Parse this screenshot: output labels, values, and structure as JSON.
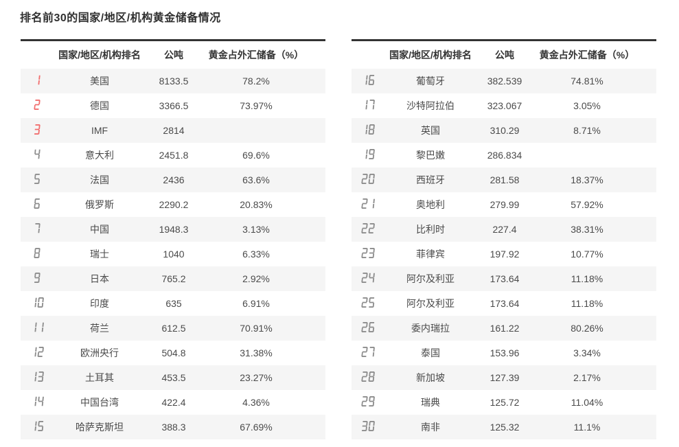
{
  "title": "排名前30的国家/地区/机构黄金储备情况",
  "colors": {
    "accent_red": "#f16d6d",
    "rank_gray": "#8c8c8c",
    "stripe_gray": "#f5f5f5",
    "header_border": "#333333",
    "body_text": "#4a4a4a"
  },
  "headers": {
    "rank": "",
    "name": "国家/地区/机构排名",
    "tonnes": "公吨",
    "pct": "黄金占外汇储备（%）"
  },
  "tables": [
    {
      "id": "left",
      "rows": [
        {
          "rank": "1",
          "name": "美国",
          "tonnes": "8133.5",
          "pct": "78.2%"
        },
        {
          "rank": "2",
          "name": "德国",
          "tonnes": "3366.5",
          "pct": "73.97%"
        },
        {
          "rank": "3",
          "name": "IMF",
          "tonnes": "2814",
          "pct": ""
        },
        {
          "rank": "4",
          "name": "意大利",
          "tonnes": "2451.8",
          "pct": "69.6%"
        },
        {
          "rank": "5",
          "name": "法国",
          "tonnes": "2436",
          "pct": "63.6%"
        },
        {
          "rank": "6",
          "name": "俄罗斯",
          "tonnes": "2290.2",
          "pct": "20.83%"
        },
        {
          "rank": "7",
          "name": "中国",
          "tonnes": "1948.3",
          "pct": "3.13%"
        },
        {
          "rank": "8",
          "name": "瑞士",
          "tonnes": "1040",
          "pct": "6.33%"
        },
        {
          "rank": "9",
          "name": "日本",
          "tonnes": "765.2",
          "pct": "2.92%"
        },
        {
          "rank": "10",
          "name": "印度",
          "tonnes": "635",
          "pct": "6.91%"
        },
        {
          "rank": "11",
          "name": "荷兰",
          "tonnes": "612.5",
          "pct": "70.91%"
        },
        {
          "rank": "12",
          "name": "欧洲央行",
          "tonnes": "504.8",
          "pct": "31.38%"
        },
        {
          "rank": "13",
          "name": "土耳其",
          "tonnes": "453.5",
          "pct": "23.27%"
        },
        {
          "rank": "14",
          "name": "中国台湾",
          "tonnes": "422.4",
          "pct": "4.36%"
        },
        {
          "rank": "15",
          "name": "哈萨克斯坦",
          "tonnes": "388.3",
          "pct": "67.69%"
        }
      ]
    },
    {
      "id": "right",
      "rows": [
        {
          "rank": "16",
          "name": "葡萄牙",
          "tonnes": "382.539",
          "pct": "74.81%"
        },
        {
          "rank": "17",
          "name": "沙特阿拉伯",
          "tonnes": "323.067",
          "pct": "3.05%"
        },
        {
          "rank": "18",
          "name": "英国",
          "tonnes": "310.29",
          "pct": "8.71%"
        },
        {
          "rank": "19",
          "name": "黎巴嫩",
          "tonnes": "286.834",
          "pct": ""
        },
        {
          "rank": "20",
          "name": "西班牙",
          "tonnes": "281.58",
          "pct": "18.37%"
        },
        {
          "rank": "21",
          "name": "奥地利",
          "tonnes": "279.99",
          "pct": "57.92%"
        },
        {
          "rank": "22",
          "name": "比利时",
          "tonnes": "227.4",
          "pct": "38.31%"
        },
        {
          "rank": "23",
          "name": "菲律宾",
          "tonnes": "197.92",
          "pct": "10.77%"
        },
        {
          "rank": "24",
          "name": "阿尔及利亚",
          "tonnes": "173.64",
          "pct": "11.18%"
        },
        {
          "rank": "25",
          "name": "阿尔及利亚",
          "tonnes": "173.64",
          "pct": "11.18%"
        },
        {
          "rank": "26",
          "name": "委内瑞拉",
          "tonnes": "161.22",
          "pct": "80.26%"
        },
        {
          "rank": "27",
          "name": "泰国",
          "tonnes": "153.96",
          "pct": "3.34%"
        },
        {
          "rank": "28",
          "name": "新加坡",
          "tonnes": "127.39",
          "pct": "2.17%"
        },
        {
          "rank": "29",
          "name": "瑞典",
          "tonnes": "125.72",
          "pct": "11.04%"
        },
        {
          "rank": "30",
          "name": "南非",
          "tonnes": "125.32",
          "pct": "11.1%"
        }
      ]
    }
  ]
}
